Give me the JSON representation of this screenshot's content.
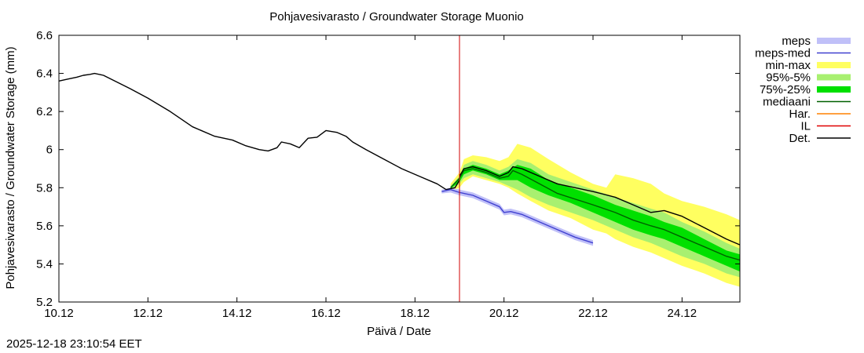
{
  "chart_data": {
    "type": "line",
    "title": "Pohjavesivarasto / Groundwater Storage   Muonio",
    "xlabel": "Päivä / Date",
    "ylabel": "Pohjavesivarasto / Groundwater Storage (mm)",
    "xlim": [
      0,
      15.3
    ],
    "ylim": [
      5.2,
      6.6
    ],
    "x_unit": "days since 10.12",
    "yticks": [
      5.2,
      5.4,
      5.6,
      5.8,
      6,
      6.2,
      6.4,
      6.6
    ],
    "ytick_labels": [
      "5.2",
      "5.4",
      "5.6",
      "5.8",
      "6",
      "6.2",
      "6.4",
      "6.6"
    ],
    "xticks": [
      0,
      2,
      4,
      6,
      8,
      10,
      12,
      14
    ],
    "xtick_labels": [
      "10.12",
      "12.12",
      "14.12",
      "16.12",
      "18.12",
      "20.12",
      "22.12",
      "24.12"
    ],
    "vline_x": 9.0,
    "legend": [
      {
        "key": "meps",
        "label": "meps",
        "style": "band",
        "color": "#c0c0f8"
      },
      {
        "key": "meps_med",
        "label": "meps-med",
        "style": "line",
        "color": "#4040d0"
      },
      {
        "key": "minmax",
        "label": "min-max",
        "style": "band",
        "color": "#ffff60"
      },
      {
        "key": "p95_5",
        "label": "95%-5%",
        "style": "band",
        "color": "#a8f070"
      },
      {
        "key": "p75_25",
        "label": "75%-25%",
        "style": "band",
        "color": "#00e000"
      },
      {
        "key": "median",
        "label": "mediaani",
        "style": "line",
        "color": "#006000"
      },
      {
        "key": "har",
        "label": "Har.",
        "style": "line",
        "color": "#ff8000"
      },
      {
        "key": "il",
        "label": "IL",
        "style": "line",
        "color": "#e00000"
      },
      {
        "key": "det",
        "label": "Det.",
        "style": "line",
        "color": "#000000"
      }
    ],
    "series": [
      {
        "name": "Det. (history)",
        "color": "#000000",
        "x": [
          0,
          0.2,
          0.4,
          0.55,
          0.7,
          0.8,
          1.0,
          1.3,
          1.6,
          2.0,
          2.5,
          3.0,
          3.5,
          3.9,
          4.2,
          4.5,
          4.7,
          4.9,
          5.0,
          5.2,
          5.4,
          5.6,
          5.8,
          6.0,
          6.25,
          6.45,
          6.6,
          6.9,
          7.3,
          7.7,
          8.1,
          8.5,
          8.7,
          8.9,
          9.0
        ],
        "y": [
          6.36,
          6.37,
          6.38,
          6.39,
          6.395,
          6.4,
          6.39,
          6.355,
          6.32,
          6.27,
          6.2,
          6.12,
          6.07,
          6.05,
          6.02,
          6.0,
          5.993,
          6.01,
          6.04,
          6.03,
          6.01,
          6.06,
          6.065,
          6.1,
          6.09,
          6.07,
          6.04,
          6.0,
          5.95,
          5.9,
          5.86,
          5.82,
          5.79,
          5.8,
          5.84
        ]
      },
      {
        "name": "Det. (forecast)",
        "color": "#000000",
        "x": [
          9.0,
          9.1,
          9.3,
          9.6,
          9.9,
          10.1,
          10.2,
          10.4,
          10.8,
          11.2,
          11.6,
          12.0,
          12.5,
          12.9,
          13.3,
          13.6,
          14.0,
          14.5,
          15.0,
          15.3
        ],
        "y": [
          5.86,
          5.9,
          5.91,
          5.89,
          5.86,
          5.88,
          5.91,
          5.9,
          5.86,
          5.82,
          5.8,
          5.78,
          5.75,
          5.71,
          5.67,
          5.68,
          5.65,
          5.59,
          5.53,
          5.5
        ]
      },
      {
        "name": "mediaani",
        "color": "#006000",
        "x": [
          8.8,
          9.0,
          9.1,
          9.3,
          9.6,
          9.9,
          10.1,
          10.2,
          10.4,
          10.8,
          11.2,
          11.6,
          12.0,
          12.5,
          12.9,
          13.3,
          13.6,
          14.0,
          14.5,
          15.0,
          15.3
        ],
        "y": [
          5.8,
          5.85,
          5.89,
          5.9,
          5.88,
          5.85,
          5.86,
          5.89,
          5.87,
          5.82,
          5.77,
          5.74,
          5.71,
          5.67,
          5.63,
          5.6,
          5.58,
          5.54,
          5.49,
          5.44,
          5.42
        ]
      },
      {
        "name": "meps-med",
        "color": "#4040d0",
        "x": [
          8.6,
          8.8,
          9.0,
          9.3,
          9.6,
          9.9,
          10.0,
          10.15,
          10.4,
          10.8,
          11.2,
          11.6,
          12.0
        ],
        "y": [
          5.78,
          5.79,
          5.775,
          5.76,
          5.73,
          5.7,
          5.67,
          5.675,
          5.66,
          5.62,
          5.58,
          5.54,
          5.51
        ]
      }
    ],
    "bands": [
      {
        "name": "min-max",
        "color": "#ffff60",
        "x": [
          8.8,
          9.0,
          9.1,
          9.3,
          9.6,
          9.9,
          10.1,
          10.3,
          10.6,
          11.0,
          11.5,
          12.0,
          12.3,
          12.5,
          12.9,
          13.3,
          13.6,
          14.0,
          14.5,
          15.0,
          15.3
        ],
        "upper": [
          5.82,
          5.88,
          5.95,
          5.97,
          5.96,
          5.94,
          5.96,
          6.03,
          6.01,
          5.95,
          5.88,
          5.82,
          5.8,
          5.87,
          5.85,
          5.82,
          5.77,
          5.73,
          5.7,
          5.66,
          5.63
        ],
        "lower": [
          5.78,
          5.8,
          5.83,
          5.86,
          5.84,
          5.82,
          5.8,
          5.77,
          5.73,
          5.68,
          5.64,
          5.58,
          5.56,
          5.53,
          5.49,
          5.46,
          5.43,
          5.39,
          5.35,
          5.3,
          5.28
        ]
      },
      {
        "name": "95%-5%",
        "color": "#a8f070",
        "x": [
          8.8,
          9.0,
          9.1,
          9.3,
          9.6,
          9.9,
          10.1,
          10.3,
          10.6,
          11.0,
          11.5,
          12.0,
          12.5,
          12.9,
          13.3,
          13.6,
          14.0,
          14.5,
          15.0,
          15.3
        ],
        "upper": [
          5.81,
          5.86,
          5.92,
          5.94,
          5.92,
          5.89,
          5.91,
          5.95,
          5.93,
          5.87,
          5.83,
          5.79,
          5.75,
          5.72,
          5.69,
          5.67,
          5.62,
          5.57,
          5.51,
          5.48
        ],
        "lower": [
          5.79,
          5.82,
          5.85,
          5.87,
          5.85,
          5.83,
          5.81,
          5.79,
          5.75,
          5.71,
          5.67,
          5.63,
          5.58,
          5.54,
          5.51,
          5.48,
          5.44,
          5.4,
          5.35,
          5.33
        ]
      },
      {
        "name": "75%-25%",
        "color": "#00e000",
        "x": [
          8.8,
          9.0,
          9.1,
          9.3,
          9.6,
          9.9,
          10.1,
          10.3,
          10.6,
          11.0,
          11.5,
          12.0,
          12.5,
          12.9,
          13.3,
          13.6,
          14.0,
          14.5,
          15.0,
          15.3
        ],
        "upper": [
          5.8,
          5.85,
          5.9,
          5.92,
          5.9,
          5.87,
          5.89,
          5.92,
          5.9,
          5.84,
          5.8,
          5.76,
          5.71,
          5.68,
          5.65,
          5.62,
          5.59,
          5.53,
          5.47,
          5.45
        ],
        "lower": [
          5.795,
          5.83,
          5.87,
          5.89,
          5.87,
          5.84,
          5.84,
          5.84,
          5.8,
          5.76,
          5.72,
          5.67,
          5.62,
          5.58,
          5.55,
          5.53,
          5.49,
          5.44,
          5.39,
          5.36
        ]
      },
      {
        "name": "meps",
        "color": "#c0c0f8",
        "x": [
          8.6,
          8.8,
          9.0,
          9.3,
          9.6,
          9.9,
          10.0,
          10.15,
          10.4,
          10.8,
          11.2,
          11.6,
          12.0
        ],
        "upper": [
          5.79,
          5.8,
          5.79,
          5.775,
          5.745,
          5.715,
          5.685,
          5.69,
          5.675,
          5.635,
          5.595,
          5.555,
          5.525
        ],
        "lower": [
          5.77,
          5.775,
          5.76,
          5.745,
          5.715,
          5.685,
          5.655,
          5.66,
          5.645,
          5.605,
          5.565,
          5.525,
          5.495
        ]
      }
    ]
  },
  "footer": {
    "timestamp": "2025-12-18 23:10:54 EET"
  }
}
